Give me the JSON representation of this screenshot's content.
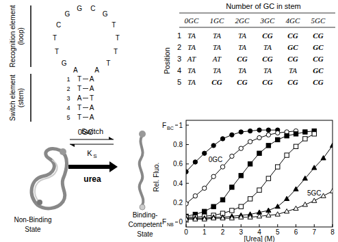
{
  "hairpin": {
    "annotations": [
      {
        "lines": [
          "Recognition element",
          "(loop)"
        ]
      },
      {
        "lines": [
          "Switch element",
          "(stem)"
        ]
      }
    ],
    "loop": [
      "A",
      "G",
      "T",
      "T",
      "C",
      "G",
      "G",
      "C",
      "G",
      "T",
      "T",
      "T",
      "T",
      "A"
    ],
    "stem": [
      {
        "position": 1,
        "left": "T",
        "right": "A"
      },
      {
        "position": 2,
        "left": "T",
        "right": "A"
      },
      {
        "position": 3,
        "left": "A",
        "right": "T"
      },
      {
        "position": 4,
        "left": "T",
        "right": "A"
      },
      {
        "position": 5,
        "left": "T",
        "right": "A"
      }
    ],
    "name": "0GC"
  },
  "table": {
    "title": "Number of GC in stem",
    "row_header": "Position",
    "columns": [
      "0GC",
      "1GC",
      "2GC",
      "3GC",
      "4GC",
      "5GC"
    ],
    "rows": [
      {
        "position": 1,
        "cells": [
          "TA",
          "TA",
          "TA",
          "CG",
          "CG",
          "CG"
        ]
      },
      {
        "position": 2,
        "cells": [
          "TA",
          "TA",
          "TA",
          "TA",
          "GC",
          "GC"
        ]
      },
      {
        "position": 3,
        "cells": [
          "AT",
          "AT",
          "CG",
          "CG",
          "CG",
          "CG"
        ]
      },
      {
        "position": 4,
        "cells": [
          "TA",
          "TA",
          "TA",
          "TA",
          "TA",
          "GC"
        ]
      },
      {
        "position": 5,
        "cells": [
          "TA",
          "CG",
          "CG",
          "CG",
          "CG",
          "CG"
        ]
      }
    ]
  },
  "schematic": {
    "switch": "Switch",
    "constant": "K",
    "constant_sub": "S",
    "denaturant": "urea",
    "states": [
      {
        "lines": [
          "Non-Binding",
          "State"
        ]
      },
      {
        "lines": [
          "Binding-",
          "Competent",
          "State"
        ]
      }
    ]
  },
  "chart_data": {
    "type": "line",
    "y_label": "Rel. Fluo.",
    "x_label": "[Urea] (M)",
    "y_annotations": [
      {
        "text": "F",
        "sub": "BC",
        "value": 1
      },
      {
        "text": "F",
        "sub": "NB",
        "value": 0
      }
    ],
    "xlim": [
      0,
      8
    ],
    "xticks": [
      0,
      1,
      2,
      3,
      4,
      5,
      6,
      7,
      8
    ],
    "ylim": [
      -0.05,
      1.05
    ],
    "yticks": [
      0,
      0.2,
      0.4,
      0.6,
      0.8,
      1
    ],
    "grid": false,
    "series": [
      {
        "name": "0GC",
        "color": "#000000",
        "marker": "circle",
        "line_style": "solid",
        "x": [
          0,
          0.5,
          1,
          1.5,
          2,
          2.5,
          3,
          3.5,
          4,
          4.5,
          5
        ],
        "values": [
          0.52,
          0.62,
          0.71,
          0.79,
          0.86,
          0.9,
          0.93,
          0.94,
          0.95,
          0.95,
          0.95
        ]
      },
      {
        "color": "#000000",
        "marker": "circle-open",
        "line_style": "solid",
        "x": [
          0,
          0.5,
          1,
          1.5,
          2,
          2.5,
          3,
          3.5,
          4,
          4.5,
          5,
          5.5,
          6
        ],
        "values": [
          0.19,
          0.27,
          0.35,
          0.47,
          0.57,
          0.68,
          0.76,
          0.83,
          0.87,
          0.9,
          0.92,
          0.93,
          0.94
        ]
      },
      {
        "color": "#000000",
        "marker": "square",
        "line_style": "solid",
        "x": [
          0,
          0.5,
          1,
          1.5,
          2,
          2.5,
          3,
          3.5,
          4,
          4.5,
          5,
          5.5,
          6,
          6.5,
          7
        ],
        "values": [
          0.06,
          0.08,
          0.11,
          0.16,
          0.23,
          0.36,
          0.48,
          0.6,
          0.71,
          0.79,
          0.85,
          0.89,
          0.91,
          0.93,
          0.94
        ]
      },
      {
        "color": "#000000",
        "marker": "square-open",
        "line_style": "solid",
        "x": [
          0,
          0.5,
          1,
          1.5,
          2,
          2.5,
          3,
          3.5,
          4,
          4.5,
          5,
          5.5,
          6,
          6.5,
          7
        ],
        "values": [
          0.05,
          0.05,
          0.06,
          0.07,
          0.09,
          0.12,
          0.16,
          0.24,
          0.33,
          0.45,
          0.57,
          0.69,
          0.78,
          0.86,
          0.91
        ]
      },
      {
        "color": "#000000",
        "marker": "triangle",
        "line_style": "solid",
        "x": [
          0,
          0.5,
          1,
          1.5,
          2,
          2.5,
          3,
          3.5,
          4,
          4.5,
          5,
          5.5,
          6,
          6.5,
          7,
          7.5,
          8
        ],
        "values": [
          0.04,
          0.04,
          0.04,
          0.05,
          0.05,
          0.06,
          0.07,
          0.08,
          0.1,
          0.12,
          0.16,
          0.24,
          0.34,
          0.45,
          0.56,
          0.66,
          0.79
        ]
      },
      {
        "name": "5GC",
        "color": "#000000",
        "marker": "triangle-open",
        "line_style": "solid",
        "x": [
          0,
          0.5,
          1,
          1.5,
          2,
          2.5,
          3,
          3.5,
          4,
          4.5,
          5,
          5.5,
          6,
          6.5,
          7,
          7.5,
          8
        ],
        "values": [
          0.03,
          0.03,
          0.03,
          0.04,
          0.04,
          0.04,
          0.05,
          0.05,
          0.06,
          0.07,
          0.08,
          0.11,
          0.14,
          0.18,
          0.22,
          0.27,
          0.32
        ]
      }
    ]
  }
}
